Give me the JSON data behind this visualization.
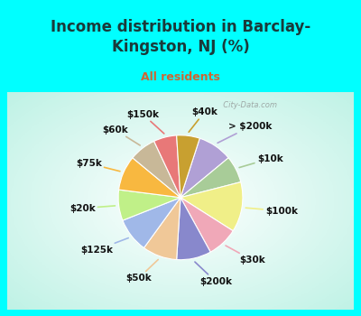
{
  "title": "Income distribution in Barclay-\nKingston, NJ (%)",
  "subtitle": "All residents",
  "bg_color": "#00FFFF",
  "chart_bg_left": "#c8e8d8",
  "labels": [
    "> $200k",
    "$10k",
    "$100k",
    "$30k",
    "$200k",
    "$50k",
    "$125k",
    "$20k",
    "$75k",
    "$60k",
    "$150k",
    "$40k"
  ],
  "values": [
    9,
    7,
    13,
    8,
    9,
    9,
    9,
    8,
    9,
    7,
    6,
    6
  ],
  "colors": [
    "#b0a0d5",
    "#a8cc98",
    "#f0ef88",
    "#f0a8b8",
    "#8888cc",
    "#f0c898",
    "#a0b8e8",
    "#c0f088",
    "#f8b840",
    "#c8b898",
    "#e87878",
    "#c8a030"
  ],
  "label_fontsize": 7.5,
  "title_fontsize": 12,
  "subtitle_fontsize": 9,
  "title_color": "#1a3a3a",
  "subtitle_color": "#cc6633",
  "watermark": "  City-Data.com",
  "startangle": 72
}
